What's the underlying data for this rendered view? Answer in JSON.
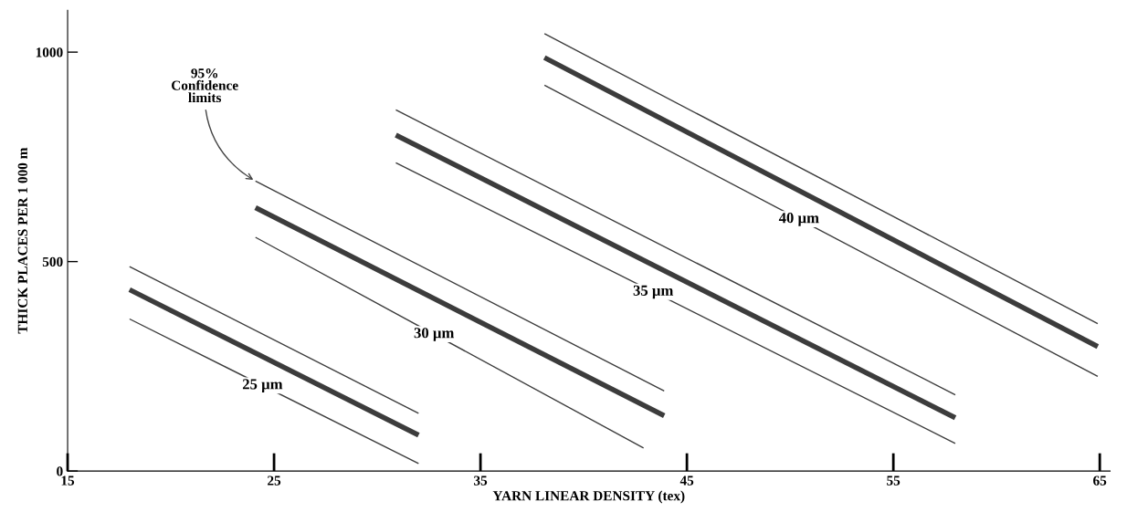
{
  "chart_data": {
    "type": "line",
    "xlabel": "YARN LINEAR DENSITY (tex)",
    "ylabel": "THICK PLACES PER 1 000 m",
    "xlim": [
      15,
      65.5
    ],
    "ylim": [
      0,
      1100
    ],
    "xticks": [
      15,
      25,
      35,
      45,
      55,
      65
    ],
    "yticks": [
      0,
      500,
      1000
    ],
    "grid": false,
    "legend": false,
    "marker": "none",
    "line_style": "solid",
    "series": [
      {
        "name": "25 µm",
        "color": "#3c3c3c",
        "x": [
          18.0,
          32.0
        ],
        "values": [
          433,
          86
        ]
      },
      {
        "color": "#3c3c3c",
        "x": [
          18.0,
          32.0
        ],
        "values": [
          488,
          138
        ]
      },
      {
        "color": "#3c3c3c",
        "x": [
          18.0,
          32.0
        ],
        "values": [
          363,
          18
        ]
      },
      {
        "name": "30 µm",
        "color": "#3c3c3c",
        "x": [
          24.1,
          43.9
        ],
        "values": [
          629,
          132
        ]
      },
      {
        "color": "#3c3c3c",
        "x": [
          24.1,
          43.9
        ],
        "values": [
          692,
          191
        ]
      },
      {
        "color": "#3c3c3c",
        "x": [
          24.1,
          42.9
        ],
        "values": [
          558,
          55
        ]
      },
      {
        "name": "35 µm",
        "color": "#3c3c3c",
        "x": [
          30.9,
          58.0
        ],
        "values": [
          802,
          127
        ]
      },
      {
        "color": "#3c3c3c",
        "x": [
          30.9,
          58.0
        ],
        "values": [
          862,
          182
        ]
      },
      {
        "color": "#3c3c3c",
        "x": [
          30.9,
          58.0
        ],
        "values": [
          736,
          66
        ]
      },
      {
        "name": "40 µm",
        "color": "#3c3c3c",
        "x": [
          38.1,
          64.9
        ],
        "values": [
          987,
          297
        ]
      },
      {
        "color": "#3c3c3c",
        "x": [
          38.1,
          64.9
        ],
        "values": [
          1044,
          352
        ]
      },
      {
        "color": "#3c3c3c",
        "x": [
          38.1,
          64.9
        ],
        "values": [
          921,
          226
        ]
      }
    ],
    "annotations": [
      {
        "text": "95%\nConfidence\nlimits",
        "x": 24.1,
        "y": 692
      }
    ]
  }
}
